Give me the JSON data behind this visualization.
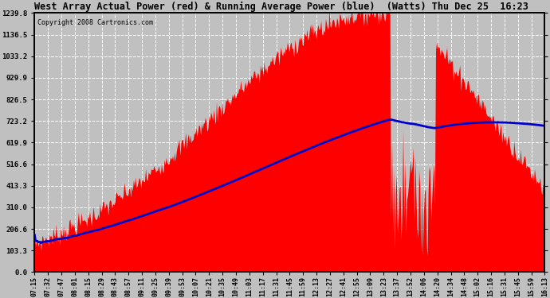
{
  "title": "West Array Actual Power (red) & Running Average Power (blue)  (Watts) Thu Dec 25  16:23",
  "copyright": "Copyright 2008 Cartronics.com",
  "ylim": [
    0.0,
    1239.8
  ],
  "yticks": [
    0.0,
    103.3,
    206.6,
    310.0,
    413.3,
    516.6,
    619.9,
    723.2,
    826.5,
    929.9,
    1033.2,
    1136.5,
    1239.8
  ],
  "background_color": "#c0c0c0",
  "plot_bg_color": "#c0c0c0",
  "fill_color": "#ff0000",
  "line_color": "#0000cc",
  "grid_color": "#ffffff",
  "title_color": "#000000",
  "x_labels": [
    "07:15",
    "07:32",
    "07:47",
    "08:01",
    "08:15",
    "08:29",
    "08:43",
    "08:57",
    "09:11",
    "09:25",
    "09:39",
    "09:53",
    "10:07",
    "10:21",
    "10:35",
    "10:49",
    "11:03",
    "11:17",
    "11:31",
    "11:45",
    "11:59",
    "12:13",
    "12:27",
    "12:41",
    "12:55",
    "13:09",
    "13:23",
    "13:37",
    "13:52",
    "14:06",
    "14:20",
    "14:34",
    "14:48",
    "15:02",
    "15:16",
    "15:31",
    "15:45",
    "15:59",
    "16:13"
  ],
  "figsize": [
    6.9,
    3.75
  ],
  "dpi": 100
}
